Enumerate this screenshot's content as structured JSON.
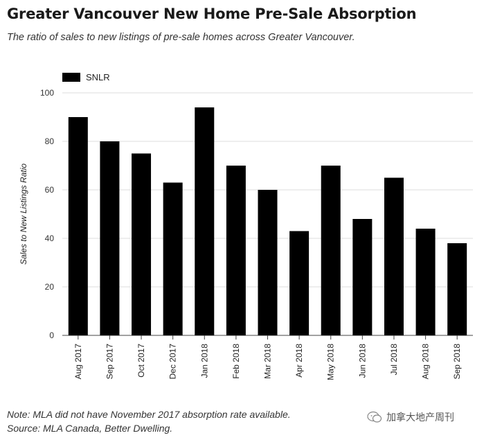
{
  "title": "Greater Vancouver New Home Pre-Sale Absorption",
  "subtitle": "The ratio of sales to new listings of pre-sale homes across Greater Vancouver.",
  "note": "Note: MLA did not have November 2017 absorption rate available.",
  "source": "Source: MLA Canada, Better Dwelling.",
  "watermark": "加拿大地产周刊",
  "chart_data": {
    "type": "bar",
    "title": "Greater Vancouver New Home Pre-Sale Absorption",
    "xlabel": "",
    "ylabel": "Sales to New Listings Ratio",
    "ylim": [
      0,
      100
    ],
    "yticks": [
      0,
      20,
      40,
      60,
      80,
      100
    ],
    "grid": true,
    "legend": "top-left",
    "categories": [
      "Aug 2017",
      "Sep 2017",
      "Oct 2017",
      "Dec 2017",
      "Jan 2018",
      "Feb 2018",
      "Mar 2018",
      "Apr 2018",
      "May 2018",
      "Jun 2018",
      "Jul 2018",
      "Aug 2018",
      "Sep 2018"
    ],
    "series": [
      {
        "name": "SNLR",
        "color": "#000000",
        "values": [
          90,
          80,
          75,
          63,
          94,
          70,
          60,
          43,
          70,
          48,
          65,
          44,
          38
        ]
      }
    ]
  }
}
